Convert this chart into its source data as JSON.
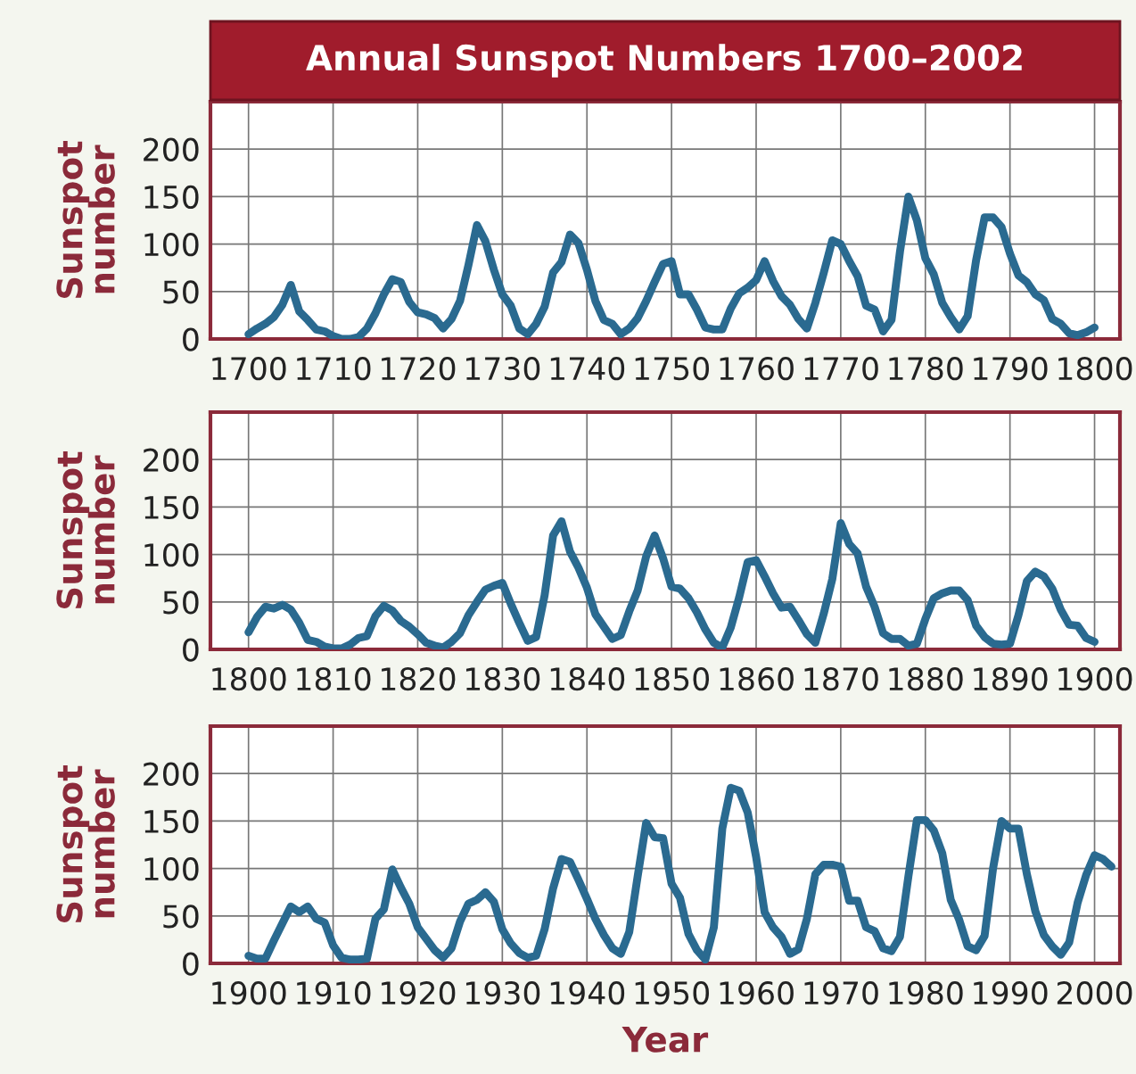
{
  "chart_data": [
    {
      "type": "line",
      "title": "Annual Sunspot Numbers 1700–2002",
      "ylabel": "Sunspot\nnumber",
      "x": [
        1700,
        1701,
        1702,
        1703,
        1704,
        1705,
        1706,
        1707,
        1708,
        1709,
        1710,
        1711,
        1712,
        1713,
        1714,
        1715,
        1716,
        1717,
        1718,
        1719,
        1720,
        1721,
        1722,
        1723,
        1724,
        1725,
        1726,
        1727,
        1728,
        1729,
        1730,
        1731,
        1732,
        1733,
        1734,
        1735,
        1736,
        1737,
        1738,
        1739,
        1740,
        1741,
        1742,
        1743,
        1744,
        1745,
        1746,
        1747,
        1748,
        1749,
        1750,
        1751,
        1752,
        1753,
        1754,
        1755,
        1756,
        1757,
        1758,
        1759,
        1760,
        1761,
        1762,
        1763,
        1764,
        1765,
        1766,
        1767,
        1768,
        1769,
        1770,
        1771,
        1772,
        1773,
        1774,
        1775,
        1776,
        1777,
        1778,
        1779,
        1780,
        1781,
        1782,
        1783,
        1784,
        1785,
        1786,
        1787,
        1788,
        1789,
        1790,
        1791,
        1792,
        1793,
        1794,
        1795,
        1796,
        1797,
        1798,
        1799,
        1800
      ],
      "series": [
        {
          "color": "#2a6a90",
          "values": [
            5,
            11,
            16,
            23,
            36,
            57,
            29,
            20,
            10,
            8,
            3,
            0,
            0,
            2,
            11,
            27,
            47,
            63,
            60,
            39,
            28,
            26,
            22,
            11,
            21,
            40,
            78,
            120,
            103,
            73,
            47,
            35,
            11,
            5,
            16,
            34,
            70,
            81,
            110,
            101,
            73,
            40,
            20,
            16,
            5,
            11,
            22,
            40,
            60,
            79,
            82,
            47,
            47,
            31,
            12,
            10,
            10,
            32,
            48,
            54,
            62,
            82,
            61,
            45,
            36,
            21,
            11,
            38,
            70,
            104,
            100,
            82,
            66,
            35,
            31,
            8,
            20,
            92,
            150,
            125,
            85,
            68,
            38,
            23,
            10,
            24,
            83,
            128,
            128,
            118,
            90,
            67,
            60,
            47,
            41,
            21,
            16,
            6,
            4,
            7,
            12
          ]
        }
      ],
      "xlim": [
        1695.5,
        1803
      ],
      "ylim": [
        0,
        250
      ],
      "xticks": [
        1700,
        1710,
        1720,
        1730,
        1740,
        1750,
        1760,
        1770,
        1780,
        1790,
        1800
      ],
      "yticks": [
        0,
        50,
        100,
        150,
        200
      ],
      "grid": true
    },
    {
      "type": "line",
      "ylabel": "Sunspot\nnumber",
      "x": [
        1800,
        1801,
        1802,
        1803,
        1804,
        1805,
        1806,
        1807,
        1808,
        1809,
        1810,
        1811,
        1812,
        1813,
        1814,
        1815,
        1816,
        1817,
        1818,
        1819,
        1820,
        1821,
        1822,
        1823,
        1824,
        1825,
        1826,
        1827,
        1828,
        1829,
        1830,
        1831,
        1832,
        1833,
        1834,
        1835,
        1836,
        1837,
        1838,
        1839,
        1840,
        1841,
        1842,
        1843,
        1844,
        1845,
        1846,
        1847,
        1848,
        1849,
        1850,
        1851,
        1852,
        1853,
        1854,
        1855,
        1856,
        1857,
        1858,
        1859,
        1860,
        1861,
        1862,
        1863,
        1864,
        1865,
        1866,
        1867,
        1868,
        1869,
        1870,
        1871,
        1872,
        1873,
        1874,
        1875,
        1876,
        1877,
        1878,
        1879,
        1880,
        1881,
        1882,
        1883,
        1884,
        1885,
        1886,
        1887,
        1888,
        1889,
        1890,
        1891,
        1892,
        1893,
        1894,
        1895,
        1896,
        1897,
        1898,
        1899,
        1900
      ],
      "series": [
        {
          "color": "#2a6a90",
          "values": [
            18,
            34,
            45,
            43,
            47,
            42,
            28,
            10,
            8,
            3,
            1,
            1,
            5,
            12,
            14,
            35,
            46,
            41,
            30,
            24,
            16,
            7,
            4,
            2,
            8,
            17,
            36,
            50,
            63,
            67,
            70,
            48,
            28,
            9,
            13,
            57,
            120,
            135,
            103,
            86,
            65,
            37,
            24,
            11,
            15,
            40,
            62,
            98,
            120,
            96,
            66,
            64,
            54,
            39,
            21,
            7,
            2,
            23,
            55,
            92,
            94,
            77,
            59,
            44,
            45,
            31,
            16,
            7,
            38,
            74,
            133,
            111,
            101,
            66,
            45,
            17,
            11,
            11,
            4,
            6,
            32,
            54,
            59,
            62,
            62,
            52,
            25,
            13,
            6,
            5,
            6,
            36,
            72,
            82,
            77,
            64,
            42,
            26,
            25,
            12,
            8
          ]
        }
      ],
      "xlim": [
        1795.5,
        1903
      ],
      "ylim": [
        0,
        250
      ],
      "xticks": [
        1800,
        1810,
        1820,
        1830,
        1840,
        1850,
        1860,
        1870,
        1880,
        1890,
        1900
      ],
      "yticks": [
        0,
        50,
        100,
        150,
        200
      ],
      "grid": true
    },
    {
      "type": "line",
      "ylabel": "Sunspot\nnumber",
      "xlabel": "Year",
      "x": [
        1900,
        1901,
        1902,
        1903,
        1904,
        1905,
        1906,
        1907,
        1908,
        1909,
        1910,
        1911,
        1912,
        1913,
        1914,
        1915,
        1916,
        1917,
        1918,
        1919,
        1920,
        1921,
        1922,
        1923,
        1924,
        1925,
        1926,
        1927,
        1928,
        1929,
        1930,
        1931,
        1932,
        1933,
        1934,
        1935,
        1936,
        1937,
        1938,
        1939,
        1940,
        1941,
        1942,
        1943,
        1944,
        1945,
        1946,
        1947,
        1948,
        1949,
        1950,
        1951,
        1952,
        1953,
        1954,
        1955,
        1956,
        1957,
        1958,
        1959,
        1960,
        1961,
        1962,
        1963,
        1964,
        1965,
        1966,
        1967,
        1968,
        1969,
        1970,
        1971,
        1972,
        1973,
        1974,
        1975,
        1976,
        1977,
        1978,
        1979,
        1980,
        1981,
        1982,
        1983,
        1984,
        1985,
        1986,
        1987,
        1988,
        1989,
        1990,
        1991,
        1992,
        1993,
        1994,
        1995,
        1996,
        1997,
        1998,
        1999,
        2000,
        2001,
        2002
      ],
      "series": [
        {
          "color": "#2a6a90",
          "values": [
            8,
            5,
            5,
            24,
            42,
            60,
            54,
            60,
            47,
            43,
            19,
            6,
            4,
            4,
            5,
            47,
            57,
            99,
            80,
            63,
            38,
            26,
            14,
            6,
            16,
            44,
            63,
            67,
            75,
            65,
            36,
            21,
            11,
            6,
            8,
            36,
            79,
            110,
            107,
            88,
            68,
            47,
            30,
            16,
            10,
            33,
            92,
            148,
            133,
            132,
            84,
            69,
            31,
            14,
            4,
            38,
            142,
            185,
            182,
            159,
            112,
            54,
            38,
            28,
            10,
            15,
            47,
            94,
            104,
            104,
            102,
            66,
            66,
            38,
            34,
            16,
            13,
            28,
            92,
            151,
            151,
            140,
            116,
            67,
            46,
            18,
            14,
            29,
            100,
            150,
            142,
            142,
            94,
            55,
            30,
            18,
            9,
            22,
            64,
            93,
            114,
            110,
            102
          ]
        }
      ],
      "xlim": [
        1895.5,
        2003
      ],
      "ylim": [
        0,
        250
      ],
      "xticks": [
        1900,
        1910,
        1920,
        1930,
        1940,
        1950,
        1960,
        1970,
        1980,
        1990,
        2000
      ],
      "yticks": [
        0,
        50,
        100,
        150,
        200
      ],
      "grid": true
    }
  ]
}
